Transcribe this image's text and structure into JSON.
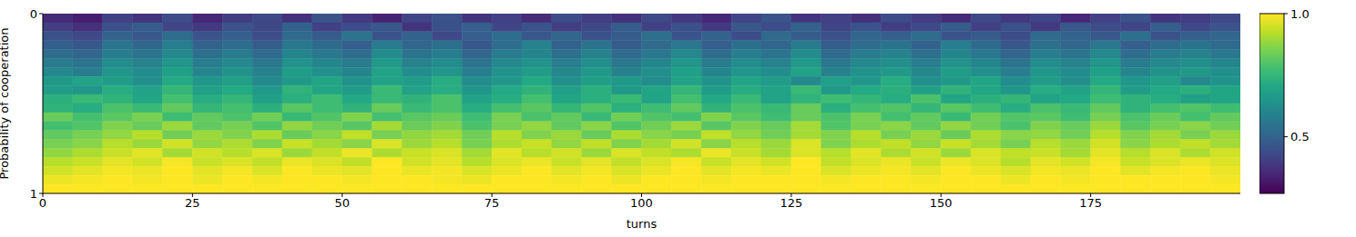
{
  "chart_data": {
    "type": "heatmap",
    "xlabel": "turns",
    "ylabel": "Probability of cooperation",
    "xlim": [
      0,
      200
    ],
    "xticks": [
      0,
      25,
      50,
      75,
      100,
      125,
      150,
      175
    ],
    "ylim": [
      1,
      0
    ],
    "yticks": [
      0,
      1
    ],
    "x_bins": [
      0,
      5,
      10,
      15,
      20,
      25,
      30,
      35,
      40,
      45,
      50,
      55,
      60,
      65,
      70,
      75,
      80,
      85,
      90,
      95,
      100,
      105,
      110,
      115,
      120,
      125,
      130,
      135,
      140,
      145,
      150,
      155,
      160,
      165,
      170,
      175,
      180,
      185,
      190,
      195,
      200
    ],
    "y_bins": [
      0,
      0.05,
      0.1,
      0.15,
      0.2,
      0.25,
      0.3,
      0.35,
      0.4,
      0.45,
      0.5,
      0.55,
      0.6,
      0.65,
      0.7,
      0.75,
      0.8,
      0.85,
      0.9,
      0.95,
      1
    ],
    "colorbar": {
      "range": [
        0.27,
        1
      ],
      "ticks": [
        0.5,
        {
          "value": 1,
          "label": "1.0"
        }
      ]
    },
    "cells": [
      [
        0.36,
        0.33,
        0.41,
        0.38,
        0.44,
        0.35,
        0.4,
        0.43,
        0.37,
        0.46,
        0.39,
        0.34,
        0.42,
        0.45,
        0.38,
        0.41,
        0.36,
        0.44,
        0.4,
        0.37,
        0.43,
        0.39,
        0.35,
        0.42,
        0.46,
        0.38,
        0.41,
        0.37,
        0.44,
        0.4,
        0.36,
        0.43,
        0.39,
        0.42,
        0.35,
        0.41,
        0.45,
        0.38,
        0.4,
        0.43
      ],
      [
        0.4,
        0.37,
        0.45,
        0.48,
        0.42,
        0.39,
        0.46,
        0.43,
        0.5,
        0.41,
        0.44,
        0.47,
        0.38,
        0.45,
        0.49,
        0.42,
        0.46,
        0.4,
        0.43,
        0.48,
        0.41,
        0.45,
        0.39,
        0.47,
        0.44,
        0.5,
        0.42,
        0.46,
        0.4,
        0.43,
        0.48,
        0.41,
        0.45,
        0.39,
        0.47,
        0.44,
        0.42,
        0.49,
        0.43,
        0.46
      ],
      [
        0.45,
        0.43,
        0.5,
        0.47,
        0.53,
        0.46,
        0.49,
        0.44,
        0.52,
        0.48,
        0.55,
        0.46,
        0.5,
        0.43,
        0.49,
        0.53,
        0.47,
        0.51,
        0.45,
        0.48,
        0.54,
        0.46,
        0.5,
        0.44,
        0.52,
        0.48,
        0.45,
        0.51,
        0.49,
        0.53,
        0.46,
        0.48,
        0.44,
        0.52,
        0.5,
        0.47,
        0.54,
        0.45,
        0.49,
        0.51
      ],
      [
        0.49,
        0.47,
        0.55,
        0.51,
        0.58,
        0.5,
        0.53,
        0.48,
        0.56,
        0.52,
        0.49,
        0.57,
        0.51,
        0.54,
        0.47,
        0.53,
        0.59,
        0.5,
        0.55,
        0.48,
        0.52,
        0.56,
        0.49,
        0.54,
        0.51,
        0.57,
        0.48,
        0.53,
        0.55,
        0.5,
        0.58,
        0.52,
        0.47,
        0.54,
        0.51,
        0.56,
        0.49,
        0.53,
        0.55,
        0.52
      ],
      [
        0.53,
        0.51,
        0.58,
        0.55,
        0.61,
        0.54,
        0.57,
        0.52,
        0.6,
        0.56,
        0.53,
        0.62,
        0.55,
        0.58,
        0.51,
        0.57,
        0.6,
        0.54,
        0.59,
        0.52,
        0.56,
        0.61,
        0.53,
        0.58,
        0.55,
        0.62,
        0.52,
        0.57,
        0.59,
        0.54,
        0.6,
        0.56,
        0.51,
        0.58,
        0.55,
        0.61,
        0.53,
        0.57,
        0.59,
        0.56
      ],
      [
        0.57,
        0.55,
        0.62,
        0.59,
        0.65,
        0.58,
        0.61,
        0.56,
        0.64,
        0.6,
        0.57,
        0.66,
        0.59,
        0.62,
        0.55,
        0.61,
        0.64,
        0.58,
        0.63,
        0.56,
        0.6,
        0.65,
        0.57,
        0.62,
        0.59,
        0.66,
        0.56,
        0.61,
        0.63,
        0.58,
        0.64,
        0.6,
        0.55,
        0.62,
        0.59,
        0.65,
        0.57,
        0.61,
        0.63,
        0.6
      ],
      [
        0.61,
        0.58,
        0.65,
        0.62,
        0.68,
        0.6,
        0.64,
        0.59,
        0.67,
        0.63,
        0.6,
        0.69,
        0.62,
        0.65,
        0.58,
        0.64,
        0.67,
        0.61,
        0.66,
        0.59,
        0.63,
        0.68,
        0.6,
        0.65,
        0.62,
        0.69,
        0.59,
        0.64,
        0.66,
        0.61,
        0.67,
        0.63,
        0.58,
        0.65,
        0.62,
        0.68,
        0.6,
        0.64,
        0.66,
        0.63
      ],
      [
        0.66,
        0.69,
        0.67,
        0.63,
        0.71,
        0.65,
        0.68,
        0.61,
        0.66,
        0.7,
        0.64,
        0.69,
        0.67,
        0.72,
        0.62,
        0.65,
        0.71,
        0.63,
        0.68,
        0.66,
        0.62,
        0.69,
        0.64,
        0.7,
        0.67,
        0.61,
        0.68,
        0.65,
        0.72,
        0.63,
        0.66,
        0.7,
        0.62,
        0.67,
        0.63,
        0.71,
        0.65,
        0.68,
        0.61,
        0.64
      ],
      [
        0.67,
        0.65,
        0.72,
        0.69,
        0.75,
        0.68,
        0.71,
        0.66,
        0.74,
        0.7,
        0.67,
        0.76,
        0.69,
        0.72,
        0.65,
        0.71,
        0.74,
        0.68,
        0.73,
        0.66,
        0.7,
        0.75,
        0.67,
        0.72,
        0.69,
        0.76,
        0.66,
        0.71,
        0.73,
        0.68,
        0.74,
        0.7,
        0.65,
        0.72,
        0.69,
        0.75,
        0.67,
        0.71,
        0.73,
        0.7
      ],
      [
        0.73,
        0.76,
        0.74,
        0.7,
        0.78,
        0.72,
        0.75,
        0.68,
        0.73,
        0.77,
        0.71,
        0.76,
        0.74,
        0.79,
        0.69,
        0.72,
        0.78,
        0.7,
        0.73,
        0.76,
        0.69,
        0.78,
        0.71,
        0.76,
        0.69,
        0.74,
        0.77,
        0.75,
        0.72,
        0.79,
        0.7,
        0.73,
        0.75,
        0.69,
        0.71,
        0.77,
        0.74,
        0.72,
        0.68,
        0.7
      ],
      [
        0.74,
        0.72,
        0.79,
        0.76,
        0.82,
        0.75,
        0.78,
        0.73,
        0.81,
        0.77,
        0.74,
        0.83,
        0.76,
        0.79,
        0.72,
        0.78,
        0.81,
        0.75,
        0.8,
        0.73,
        0.77,
        0.82,
        0.74,
        0.79,
        0.76,
        0.83,
        0.73,
        0.78,
        0.8,
        0.75,
        0.81,
        0.77,
        0.72,
        0.79,
        0.76,
        0.82,
        0.74,
        0.78,
        0.8,
        0.77
      ],
      [
        0.83,
        0.78,
        0.81,
        0.85,
        0.77,
        0.82,
        0.79,
        0.84,
        0.76,
        0.8,
        0.86,
        0.78,
        0.81,
        0.83,
        0.77,
        0.85,
        0.79,
        0.82,
        0.76,
        0.84,
        0.8,
        0.78,
        0.86,
        0.81,
        0.77,
        0.83,
        0.79,
        0.85,
        0.78,
        0.82,
        0.76,
        0.84,
        0.8,
        0.81,
        0.77,
        0.85,
        0.79,
        0.83,
        0.78,
        0.82
      ],
      [
        0.78,
        0.8,
        0.86,
        0.83,
        0.89,
        0.82,
        0.85,
        0.8,
        0.88,
        0.84,
        0.81,
        0.9,
        0.83,
        0.86,
        0.79,
        0.85,
        0.88,
        0.82,
        0.87,
        0.8,
        0.84,
        0.89,
        0.81,
        0.86,
        0.83,
        0.9,
        0.8,
        0.85,
        0.87,
        0.82,
        0.88,
        0.84,
        0.79,
        0.86,
        0.83,
        0.89,
        0.81,
        0.85,
        0.87,
        0.84
      ],
      [
        0.82,
        0.85,
        0.88,
        0.92,
        0.84,
        0.89,
        0.86,
        0.91,
        0.83,
        0.87,
        0.93,
        0.85,
        0.88,
        0.9,
        0.84,
        0.92,
        0.86,
        0.89,
        0.83,
        0.91,
        0.87,
        0.85,
        0.93,
        0.88,
        0.84,
        0.9,
        0.86,
        0.92,
        0.85,
        0.89,
        0.83,
        0.91,
        0.87,
        0.88,
        0.84,
        0.92,
        0.86,
        0.9,
        0.85,
        0.89
      ],
      [
        0.85,
        0.87,
        0.92,
        0.89,
        0.95,
        0.88,
        0.91,
        0.86,
        0.94,
        0.9,
        0.87,
        0.96,
        0.89,
        0.92,
        0.85,
        0.91,
        0.94,
        0.88,
        0.93,
        0.86,
        0.9,
        0.95,
        0.87,
        0.92,
        0.89,
        0.96,
        0.86,
        0.91,
        0.93,
        0.88,
        0.94,
        0.9,
        0.85,
        0.92,
        0.89,
        0.95,
        0.87,
        0.91,
        0.93,
        0.9
      ],
      [
        0.88,
        0.91,
        0.94,
        0.97,
        0.9,
        0.95,
        0.92,
        0.96,
        0.89,
        0.93,
        0.98,
        0.91,
        0.94,
        0.96,
        0.9,
        0.97,
        0.92,
        0.95,
        0.89,
        0.96,
        0.93,
        0.91,
        0.98,
        0.94,
        0.9,
        0.96,
        0.92,
        0.97,
        0.91,
        0.95,
        0.89,
        0.96,
        0.93,
        0.94,
        0.9,
        0.97,
        0.92,
        0.96,
        0.91,
        0.95
      ],
      [
        0.92,
        0.94,
        0.97,
        0.95,
        0.99,
        0.94,
        0.96,
        0.93,
        0.98,
        0.96,
        0.93,
        1.0,
        0.95,
        0.97,
        0.92,
        0.96,
        0.98,
        0.94,
        0.97,
        0.93,
        0.96,
        0.99,
        0.94,
        0.97,
        0.95,
        1.0,
        0.93,
        0.96,
        0.98,
        0.94,
        0.98,
        0.96,
        0.92,
        0.97,
        0.95,
        0.99,
        0.94,
        0.96,
        0.98,
        0.96
      ],
      [
        0.95,
        0.97,
        0.99,
        0.98,
        1.0,
        0.97,
        0.99,
        0.96,
        1.0,
        0.98,
        0.97,
        1.0,
        0.98,
        0.99,
        0.96,
        0.98,
        1.0,
        0.97,
        0.99,
        0.96,
        0.98,
        1.0,
        0.97,
        0.99,
        0.98,
        1.0,
        0.96,
        0.98,
        0.99,
        0.97,
        1.0,
        0.98,
        0.96,
        0.99,
        0.98,
        1.0,
        0.97,
        0.99,
        1.0,
        0.98
      ],
      [
        0.98,
        0.99,
        1.0,
        0.99,
        1.0,
        0.98,
        1.0,
        0.99,
        1.0,
        1.0,
        0.99,
        1.0,
        1.0,
        0.99,
        0.98,
        1.0,
        1.0,
        0.99,
        1.0,
        0.98,
        1.0,
        1.0,
        0.99,
        1.0,
        1.0,
        1.0,
        0.99,
        1.0,
        1.0,
        0.99,
        1.0,
        1.0,
        0.98,
        1.0,
        0.99,
        1.0,
        1.0,
        1.0,
        1.0,
        0.99
      ],
      [
        1,
        1,
        1,
        1,
        1,
        1,
        1,
        1,
        1,
        1,
        1,
        1,
        1,
        1,
        1,
        1,
        1,
        1,
        1,
        1,
        1,
        1,
        1,
        1,
        1,
        1,
        1,
        1,
        1,
        1,
        1,
        1,
        1,
        1,
        1,
        1,
        1,
        1,
        1,
        1
      ]
    ]
  }
}
